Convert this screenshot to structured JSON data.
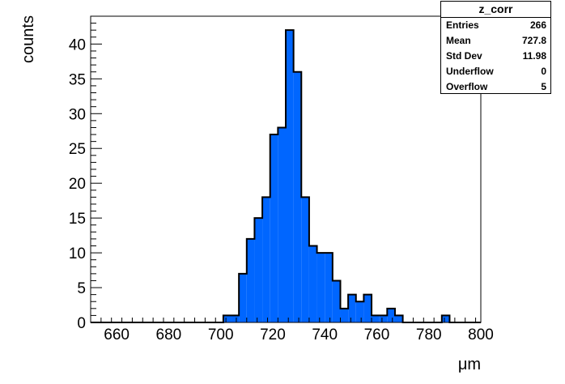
{
  "chart_data": {
    "type": "bar",
    "title": "",
    "xlabel": "μm",
    "ylabel": "counts",
    "xlim": [
      650,
      800
    ],
    "ylim": [
      0,
      44
    ],
    "bin_width": 3,
    "bins": [
      {
        "x0": 701,
        "count": 1
      },
      {
        "x0": 704,
        "count": 1
      },
      {
        "x0": 707,
        "count": 7
      },
      {
        "x0": 710,
        "count": 12
      },
      {
        "x0": 713,
        "count": 15
      },
      {
        "x0": 716,
        "count": 18
      },
      {
        "x0": 719,
        "count": 27
      },
      {
        "x0": 722,
        "count": 28
      },
      {
        "x0": 725,
        "count": 42
      },
      {
        "x0": 728,
        "count": 36
      },
      {
        "x0": 731,
        "count": 18
      },
      {
        "x0": 734,
        "count": 11
      },
      {
        "x0": 737,
        "count": 10
      },
      {
        "x0": 740,
        "count": 10
      },
      {
        "x0": 743,
        "count": 6
      },
      {
        "x0": 746,
        "count": 2
      },
      {
        "x0": 749,
        "count": 4
      },
      {
        "x0": 752,
        "count": 3
      },
      {
        "x0": 755,
        "count": 4
      },
      {
        "x0": 758,
        "count": 1
      },
      {
        "x0": 761,
        "count": 1
      },
      {
        "x0": 764,
        "count": 2
      },
      {
        "x0": 767,
        "count": 1
      },
      {
        "x0": 770,
        "count": 0
      },
      {
        "x0": 773,
        "count": 0
      },
      {
        "x0": 776,
        "count": 0
      },
      {
        "x0": 779,
        "count": 0
      },
      {
        "x0": 782,
        "count": 0
      },
      {
        "x0": 785,
        "count": 1
      }
    ],
    "x_ticks": [
      660,
      680,
      700,
      720,
      740,
      760,
      780,
      800
    ],
    "y_ticks": [
      0,
      5,
      10,
      15,
      20,
      25,
      30,
      35,
      40
    ],
    "fill_color": "#0066ff",
    "grid": false,
    "stats": {
      "title": "z_corr",
      "rows": [
        {
          "label": "Entries",
          "value": "266"
        },
        {
          "label": "Mean",
          "value": "727.8"
        },
        {
          "label": "Std Dev",
          "value": "11.98"
        },
        {
          "label": "Underflow",
          "value": "0"
        },
        {
          "label": "Overflow",
          "value": "5"
        }
      ]
    }
  }
}
